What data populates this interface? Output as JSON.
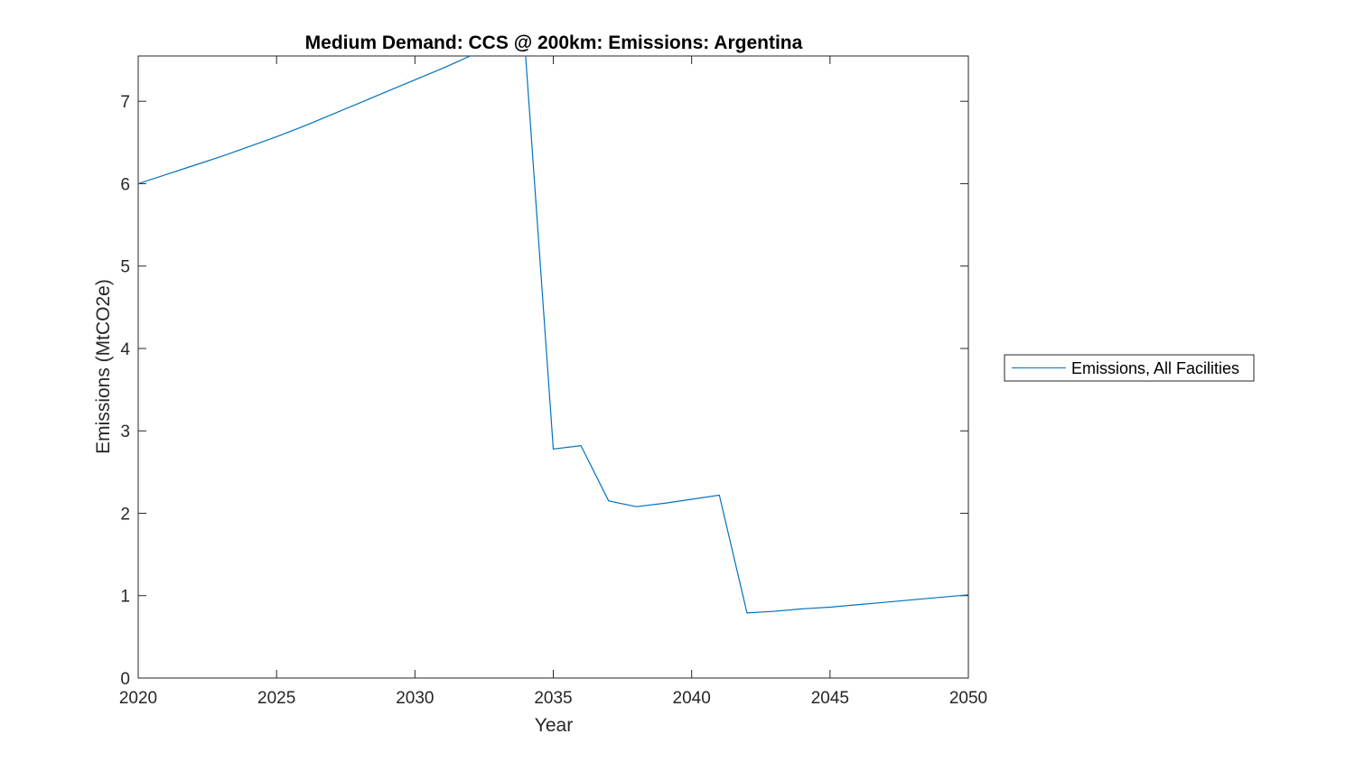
{
  "chart_data": {
    "type": "line",
    "title": "Medium Demand: CCS @ 200km: Emissions: Argentina",
    "xlabel": "Year",
    "ylabel": "Emissions (MtCO2e)",
    "xlim": [
      2020,
      2050
    ],
    "ylim": [
      0,
      7.55
    ],
    "xticks": [
      2020,
      2025,
      2030,
      2035,
      2040,
      2045,
      2050
    ],
    "yticks": [
      0,
      1,
      2,
      3,
      4,
      5,
      6,
      7
    ],
    "grid": false,
    "legend_position": "outside-right",
    "series": [
      {
        "name": "Emissions, All Facilities",
        "color": "#0072BD",
        "x": [
          2020,
          2021,
          2022,
          2023,
          2024,
          2025,
          2026,
          2027,
          2028,
          2029,
          2030,
          2031,
          2032,
          2033,
          2034,
          2035,
          2036,
          2037,
          2038,
          2039,
          2040,
          2041,
          2042,
          2043,
          2044,
          2045,
          2046,
          2047,
          2048,
          2049,
          2050
        ],
        "y": [
          6.0,
          6.11,
          6.22,
          6.33,
          6.45,
          6.57,
          6.7,
          6.84,
          6.98,
          7.12,
          7.26,
          7.4,
          7.55,
          7.7,
          7.55,
          2.78,
          2.82,
          2.15,
          2.08,
          2.12,
          2.17,
          2.22,
          0.79,
          0.81,
          0.84,
          0.86,
          0.89,
          0.92,
          0.95,
          0.98,
          1.01
        ]
      }
    ]
  }
}
